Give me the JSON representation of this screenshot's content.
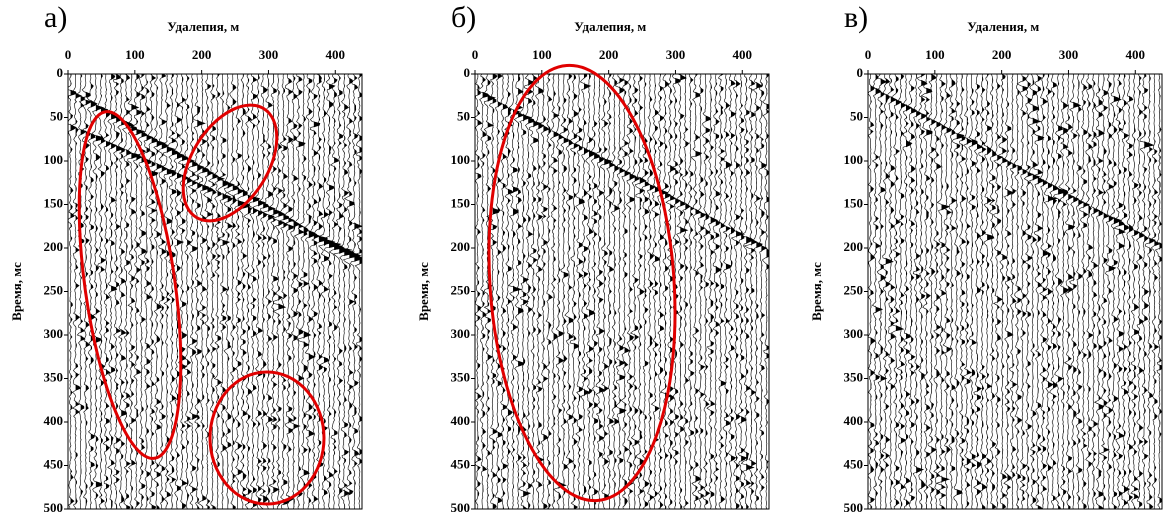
{
  "chart_data": [
    {
      "type": "wiggle",
      "panel_label": "а)",
      "title": "Удалепия, м",
      "ylabel": "Время, мс",
      "xlim": [
        0,
        440
      ],
      "xticks": [
        0,
        100,
        200,
        300,
        400
      ],
      "ylim": [
        0,
        500
      ],
      "yticks": [
        0,
        50,
        100,
        150,
        200,
        250,
        300,
        350,
        400,
        450,
        500
      ]
    },
    {
      "type": "wiggle",
      "panel_label": "б)",
      "title": "Удалепия, м",
      "ylabel": "Время, мс",
      "xlim": [
        0,
        440
      ],
      "xticks": [
        0,
        100,
        200,
        300,
        400
      ],
      "ylim": [
        0,
        500
      ],
      "yticks": [
        0,
        50,
        100,
        150,
        200,
        250,
        300,
        350,
        400,
        450,
        500
      ]
    },
    {
      "type": "wiggle",
      "panel_label": "в)",
      "title": "Удаления, м",
      "ylabel": "Время, мс",
      "xlim": [
        0,
        440
      ],
      "xticks": [
        0,
        100,
        200,
        300,
        400
      ],
      "ylim": [
        0,
        500
      ],
      "yticks": [
        0,
        50,
        100,
        150,
        200,
        250,
        300,
        350,
        400,
        450,
        500
      ]
    }
  ]
}
